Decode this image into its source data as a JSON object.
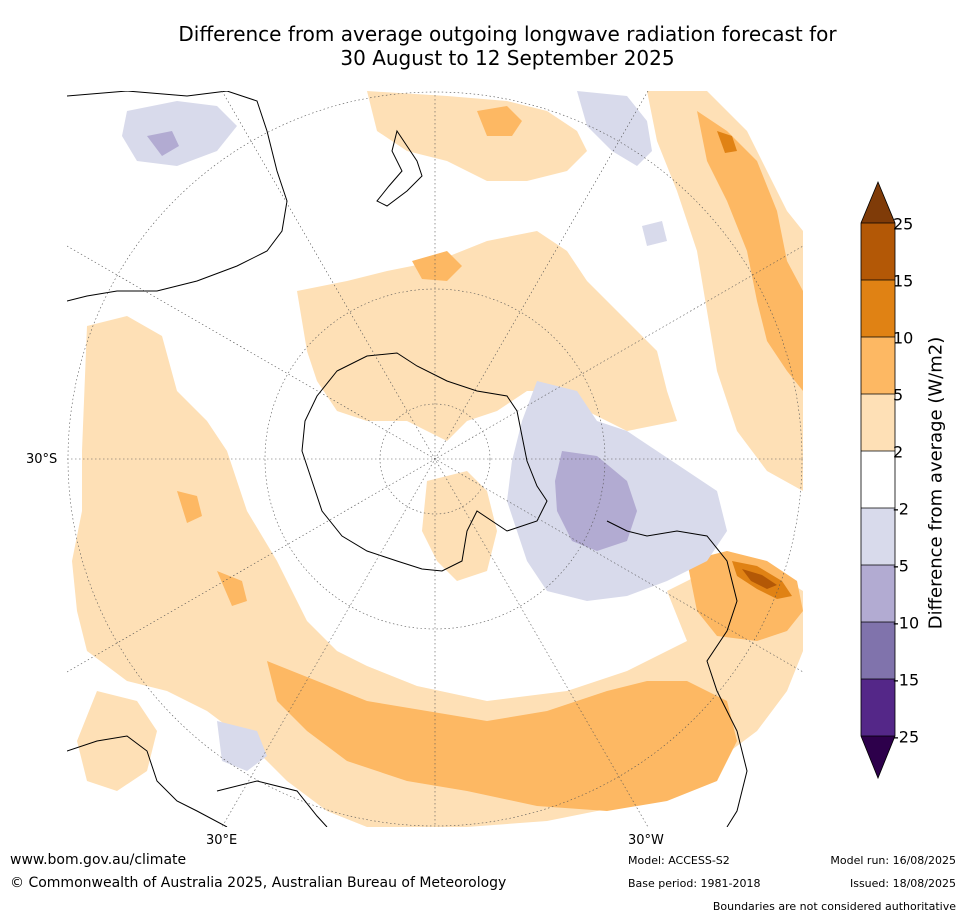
{
  "title": {
    "line1": "Difference from average outgoing longwave radiation forecast for",
    "line2": "30 August to 12 September 2025"
  },
  "map": {
    "projection": "South polar stereographic",
    "lat_labels": {
      "s30": "30°S"
    },
    "lon_labels": {
      "e30": "30°E",
      "w30": "30°W"
    },
    "background_color": "#ffffff",
    "coastline_color": "#000000"
  },
  "colorbar": {
    "label": "Difference from average (W/m2)",
    "ticks": [
      "25",
      "15",
      "10",
      "5",
      "2",
      "-2",
      "-5",
      "-10",
      "-15",
      "-25"
    ],
    "colors": {
      "gt25": "#7f3b08",
      "15_25": "#b35806",
      "10_15": "#e08214",
      "5_10": "#fdb863",
      "2_5": "#fee0b6",
      "m2_2": "#ffffff",
      "m5_m2": "#d8daeb",
      "m10_m5": "#b2abd2",
      "m15_m10": "#8073ac",
      "m25_m15": "#542788",
      "lt_m25": "#2d004b"
    }
  },
  "footer": {
    "website": "www.bom.gov.au/climate",
    "copyright": "© Commonwealth of Australia 2025, Australian Bureau of Meteorology",
    "model": "Model: ACCESS-S2",
    "base_period": "Base period: 1981-2018",
    "model_run": "Model run: 16/08/2025",
    "issued": "Issued: 18/08/2025",
    "disclaimer": "Boundaries are not considered authoritative"
  }
}
